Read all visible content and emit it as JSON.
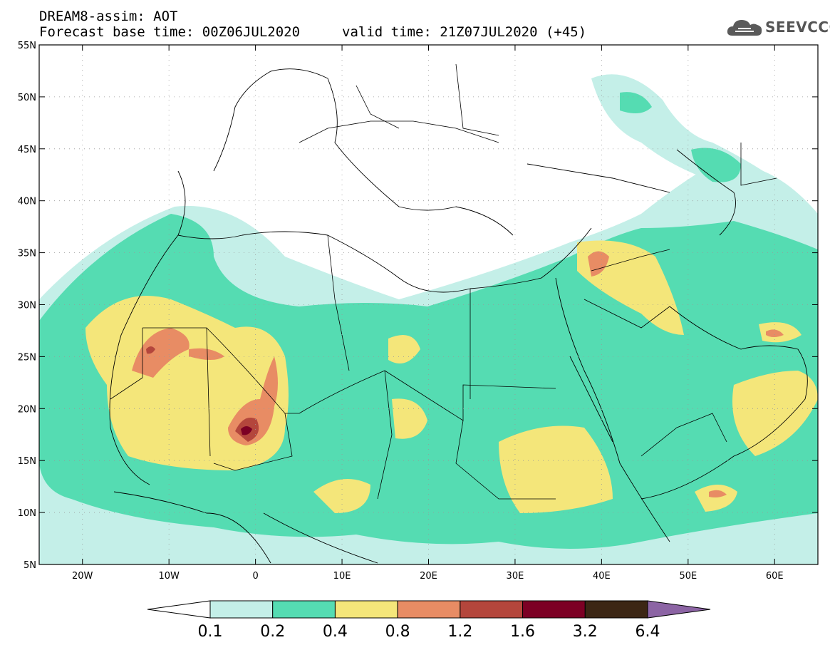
{
  "title": {
    "line1": "DREAM8-assim: AOT",
    "base_time": "Forecast base time: 00Z06JUL2020",
    "valid_time": "valid time: 21Z07JUL2020 (+45)"
  },
  "logo": {
    "text": "SEEVCCC",
    "icon": "cloud-icon"
  },
  "axes": {
    "lon_min": -25,
    "lon_max": 65,
    "lat_min": 5,
    "lat_max": 55,
    "lon_ticks": [
      {
        "v": -20,
        "t": "20W"
      },
      {
        "v": -10,
        "t": "10W"
      },
      {
        "v": 0,
        "t": "0"
      },
      {
        "v": 10,
        "t": "10E"
      },
      {
        "v": 20,
        "t": "20E"
      },
      {
        "v": 30,
        "t": "30E"
      },
      {
        "v": 40,
        "t": "40E"
      },
      {
        "v": 50,
        "t": "50E"
      },
      {
        "v": 60,
        "t": "60E"
      }
    ],
    "lat_ticks": [
      {
        "v": 55,
        "t": "55N"
      },
      {
        "v": 50,
        "t": "50N"
      },
      {
        "v": 45,
        "t": "45N"
      },
      {
        "v": 40,
        "t": "40N"
      },
      {
        "v": 35,
        "t": "35N"
      },
      {
        "v": 30,
        "t": "30N"
      },
      {
        "v": 25,
        "t": "25N"
      },
      {
        "v": 20,
        "t": "20N"
      },
      {
        "v": 15,
        "t": "15N"
      },
      {
        "v": 10,
        "t": "10N"
      },
      {
        "v": 5,
        "t": "5N"
      }
    ],
    "grid": "dotted"
  },
  "colorbar": {
    "labels": [
      "0.1",
      "0.2",
      "0.4",
      "0.8",
      "1.2",
      "1.6",
      "3.2",
      "6.4"
    ],
    "colors": [
      "#ffffff",
      "#c4efe8",
      "#55dcb2",
      "#f4e67a",
      "#e88c64",
      "#b4463c",
      "#7c0024",
      "#3c2614",
      "#8c64a4"
    ]
  }
}
